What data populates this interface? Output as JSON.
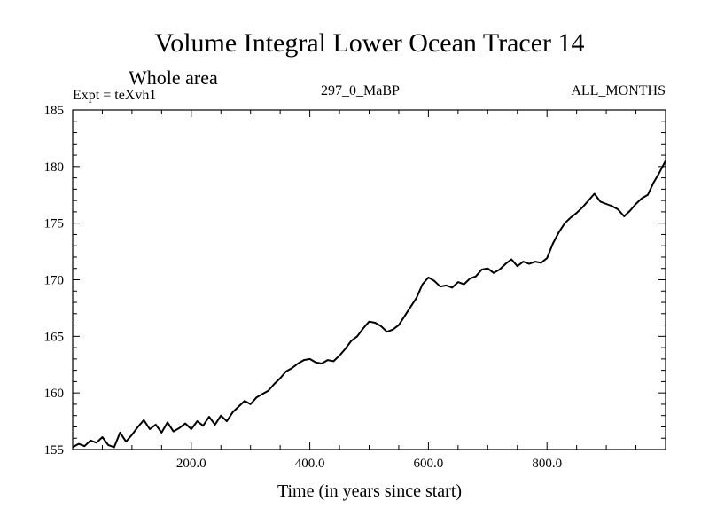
{
  "chart_data": {
    "type": "line",
    "title": "Volume Integral Lower Ocean Tracer 14",
    "subtitle": "Whole area",
    "expt_label": "Expt = teXvh1",
    "run_label": "297_0_MaBP",
    "months_label": "ALL_MONTHS",
    "xlabel": "Time (in years since start)",
    "ylabel": "",
    "xlim": [
      0,
      1000
    ],
    "ylim": [
      155,
      185
    ],
    "x_ticks": [
      200,
      400,
      600,
      800
    ],
    "x_tick_labels": [
      "200.0",
      "400.0",
      "600.0",
      "800.0"
    ],
    "y_ticks": [
      155,
      160,
      165,
      170,
      175,
      180,
      185
    ],
    "y_tick_labels": [
      "155",
      "160",
      "165",
      "170",
      "175",
      "180",
      "185"
    ],
    "grid": false,
    "series": [
      {
        "name": "tracer14",
        "x": [
          0,
          10,
          20,
          30,
          40,
          50,
          60,
          70,
          80,
          90,
          100,
          110,
          120,
          130,
          140,
          150,
          160,
          170,
          180,
          190,
          200,
          210,
          220,
          230,
          240,
          250,
          260,
          270,
          280,
          290,
          300,
          310,
          320,
          330,
          340,
          350,
          360,
          370,
          380,
          390,
          400,
          410,
          420,
          430,
          440,
          450,
          460,
          470,
          480,
          490,
          500,
          510,
          520,
          530,
          540,
          550,
          560,
          570,
          580,
          590,
          600,
          610,
          620,
          630,
          640,
          650,
          660,
          670,
          680,
          690,
          700,
          710,
          720,
          730,
          740,
          750,
          760,
          770,
          780,
          790,
          800,
          810,
          820,
          830,
          840,
          850,
          860,
          870,
          880,
          890,
          900,
          910,
          920,
          930,
          940,
          950,
          960,
          970,
          980,
          990,
          1000
        ],
        "values": [
          155.2,
          155.5,
          155.3,
          155.8,
          155.6,
          156.1,
          155.4,
          155.2,
          156.5,
          155.7,
          156.3,
          157.0,
          157.6,
          156.8,
          157.2,
          156.5,
          157.4,
          156.6,
          156.9,
          157.3,
          156.8,
          157.5,
          157.1,
          157.9,
          157.2,
          158.0,
          157.5,
          158.3,
          158.8,
          159.3,
          159.0,
          159.6,
          159.9,
          160.2,
          160.8,
          161.3,
          161.9,
          162.2,
          162.6,
          162.9,
          163.0,
          162.7,
          162.6,
          162.9,
          162.8,
          163.3,
          163.9,
          164.6,
          165.0,
          165.7,
          166.3,
          166.2,
          165.9,
          165.4,
          165.6,
          166.0,
          166.8,
          167.6,
          168.4,
          169.6,
          170.2,
          169.9,
          169.4,
          169.5,
          169.3,
          169.8,
          169.6,
          170.1,
          170.3,
          170.9,
          171.0,
          170.6,
          170.9,
          171.4,
          171.8,
          171.2,
          171.6,
          171.4,
          171.6,
          171.5,
          171.9,
          173.2,
          174.2,
          175.0,
          175.5,
          175.9,
          176.4,
          177.0,
          177.6,
          176.9,
          176.7,
          176.5,
          176.2,
          175.6,
          176.1,
          176.7,
          177.2,
          177.5,
          178.6,
          179.5,
          180.5
        ]
      }
    ]
  }
}
